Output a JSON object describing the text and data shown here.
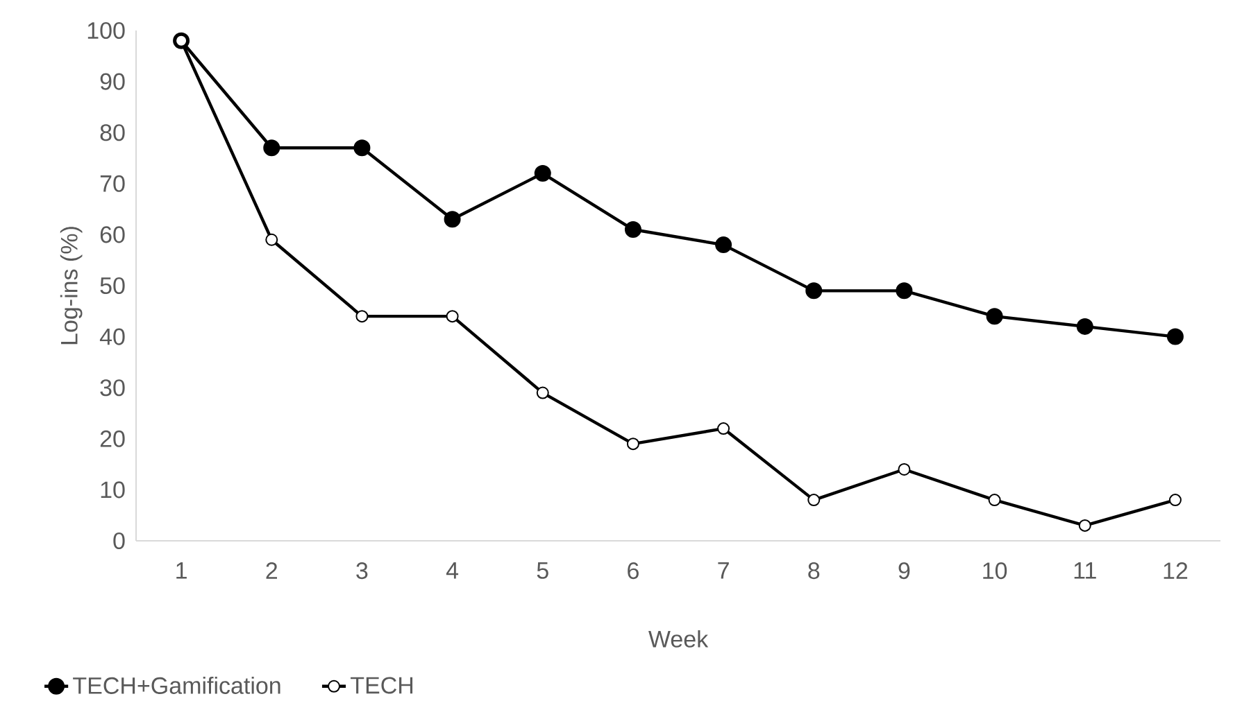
{
  "chart_data": {
    "type": "line",
    "xlabel": "Week",
    "ylabel": "Log-ins  (%)",
    "categories": [
      "1",
      "2",
      "3",
      "4",
      "5",
      "6",
      "7",
      "8",
      "9",
      "10",
      "11",
      "12"
    ],
    "series": [
      {
        "name": "TECH+Gamification",
        "color": "#000000",
        "values": [
          98,
          77,
          77,
          63,
          72,
          61,
          58,
          49,
          49,
          44,
          42,
          40
        ]
      },
      {
        "name": "TECH",
        "color": "#000000",
        "values": [
          98,
          59,
          44,
          44,
          29,
          19,
          22,
          8,
          14,
          8,
          3,
          8
        ]
      }
    ],
    "ylim": [
      0,
      100
    ],
    "yticks": [
      0,
      10,
      20,
      30,
      40,
      50,
      60,
      70,
      80,
      90,
      100
    ],
    "grid": false,
    "legend": "bottom left",
    "marker": "circle",
    "line_style": "solid"
  }
}
